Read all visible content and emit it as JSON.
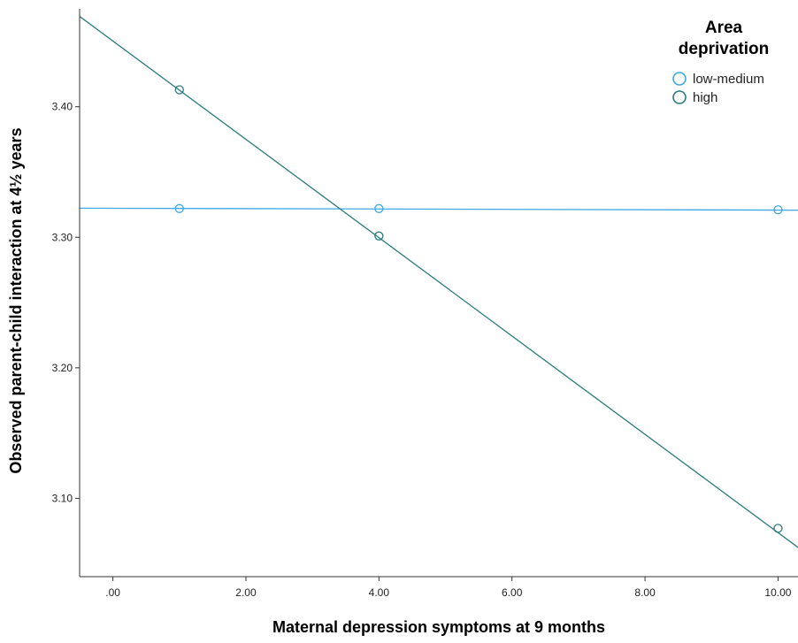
{
  "chart_data": {
    "type": "scatter",
    "xlabel": "Maternal depression symptoms at 9 months",
    "ylabel": "Observed parent-child interaction at 4½ years",
    "xlim": [
      -0.5,
      10.3
    ],
    "ylim": [
      3.04,
      3.475
    ],
    "x_ticks": [
      0,
      2,
      4,
      6,
      8,
      10
    ],
    "x_tick_labels": [
      ".00",
      "2.00",
      "4.00",
      "6.00",
      "8.00",
      "10.00"
    ],
    "y_ticks": [
      3.1,
      3.2,
      3.3,
      3.4
    ],
    "y_tick_labels": [
      "3.10",
      "3.20",
      "3.30",
      "3.40"
    ],
    "grid": false,
    "legend": {
      "title_lines": [
        "Area",
        "deprivation"
      ],
      "placement": "top-right"
    },
    "series": [
      {
        "name": "low-medium",
        "color": "#3ea8e6",
        "points": [
          {
            "x": 1,
            "y": 3.322
          },
          {
            "x": 4,
            "y": 3.322
          },
          {
            "x": 10,
            "y": 3.321
          }
        ],
        "fit_line": {
          "x": [
            -0.5,
            10.3
          ],
          "y": [
            3.3223,
            3.3208
          ]
        }
      },
      {
        "name": "high",
        "color": "#2a7b7b",
        "points": [
          {
            "x": 1,
            "y": 3.413
          },
          {
            "x": 4,
            "y": 3.301
          },
          {
            "x": 10,
            "y": 3.077
          }
        ],
        "fit_line": {
          "x": [
            -0.5,
            10.3
          ],
          "y": [
            3.4692,
            3.0624
          ]
        }
      }
    ]
  }
}
